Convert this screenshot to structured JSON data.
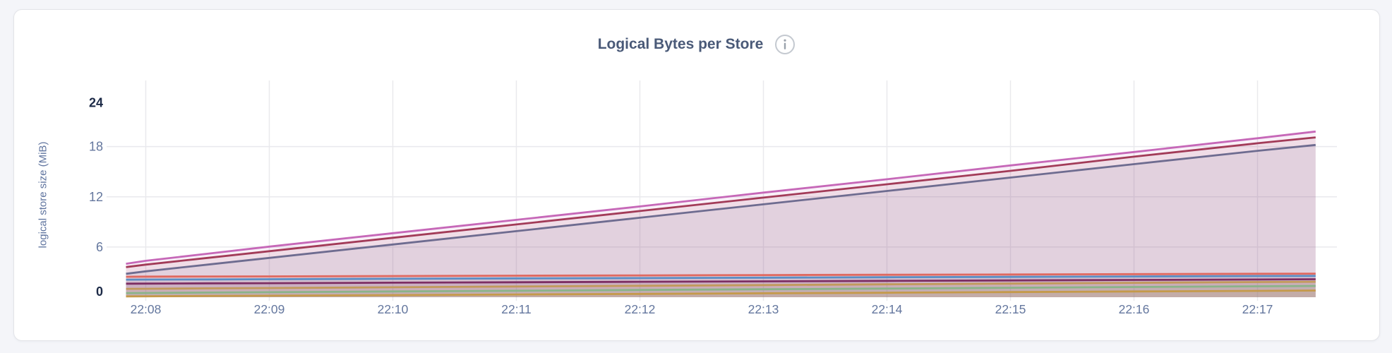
{
  "page": {
    "background": "#f4f5f9"
  },
  "card": {
    "background": "#ffffff",
    "border_color": "#e3e4e8"
  },
  "header": {
    "title": "Logical Bytes per Store",
    "info_icon": "info-icon"
  },
  "colors": {
    "title": "#4a5a78",
    "axis_tick": "#64779e",
    "axis_tick_bold": "#1c2a47",
    "axis_title": "#5e739e",
    "grid": "#e9e9ed",
    "icon_ring": "#c4c9d0",
    "icon_glyph": "#9aa2ac"
  },
  "chart_data": {
    "type": "area",
    "title": "Logical Bytes per Store",
    "xlabel": "",
    "ylabel": "logical store size (MiB)",
    "ylim": [
      0,
      24
    ],
    "y_ticks": [
      0,
      6,
      12,
      18,
      24
    ],
    "x_ticks": [
      "22:08",
      "22:09",
      "22:10",
      "22:11",
      "22:12",
      "22:13",
      "22:14",
      "22:15",
      "22:16",
      "22:17"
    ],
    "grid": true,
    "legend_position": "none",
    "x_minutes_from_first_tick": [
      -0.16,
      0,
      0.5,
      1,
      2,
      3,
      4,
      5,
      6,
      7,
      8,
      9,
      9.47
    ],
    "series": [
      {
        "color": "#c668b8",
        "values": [
          4.0,
          4.35,
          5.2,
          6.05,
          7.65,
          9.25,
          10.85,
          12.5,
          14.1,
          15.75,
          17.35,
          19.0,
          19.8
        ]
      },
      {
        "color": "#a23b58",
        "values": [
          3.6,
          3.9,
          4.7,
          5.5,
          7.1,
          8.7,
          10.3,
          11.9,
          13.5,
          15.1,
          16.8,
          18.4,
          19.1
        ]
      },
      {
        "color": "#6e6c90",
        "values": [
          2.8,
          3.1,
          3.9,
          4.7,
          6.3,
          7.9,
          9.5,
          11.1,
          12.7,
          14.3,
          15.9,
          17.5,
          18.2
        ]
      },
      {
        "color": "#df6960",
        "values": [
          2.45,
          2.46,
          2.48,
          2.49,
          2.53,
          2.57,
          2.61,
          2.65,
          2.68,
          2.72,
          2.76,
          2.8,
          2.82
        ]
      },
      {
        "color": "#5b8ec4",
        "values": [
          2.1,
          2.11,
          2.13,
          2.15,
          2.2,
          2.25,
          2.29,
          2.34,
          2.39,
          2.43,
          2.48,
          2.53,
          2.55
        ]
      },
      {
        "color": "#7d2e63",
        "values": [
          1.62,
          1.63,
          1.66,
          1.68,
          1.74,
          1.79,
          1.85,
          1.9,
          1.96,
          2.01,
          2.07,
          2.12,
          2.15
        ]
      },
      {
        "color": "#c29a5b",
        "values": [
          1.0,
          1.01,
          1.06,
          1.1,
          1.19,
          1.28,
          1.37,
          1.45,
          1.54,
          1.63,
          1.72,
          1.81,
          1.85
        ]
      },
      {
        "color": "#8ab489",
        "values": [
          0.5,
          0.51,
          0.56,
          0.6,
          0.69,
          0.78,
          0.87,
          0.95,
          1.04,
          1.13,
          1.22,
          1.31,
          1.35
        ]
      },
      {
        "color": "#c59a4a",
        "values": [
          0.1,
          0.11,
          0.15,
          0.18,
          0.25,
          0.33,
          0.4,
          0.47,
          0.54,
          0.62,
          0.69,
          0.76,
          0.8
        ]
      }
    ]
  }
}
